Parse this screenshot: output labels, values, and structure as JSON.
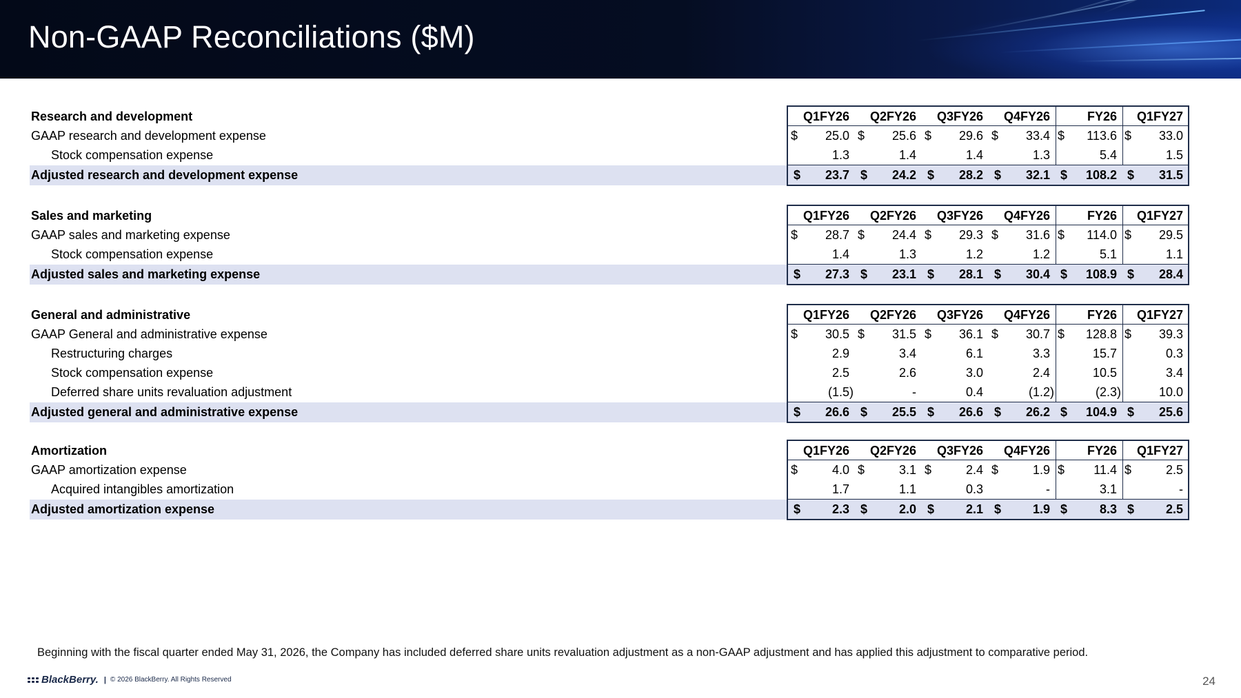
{
  "title": "Non-GAAP Reconciliations ($M)",
  "columns": [
    "Q1FY26",
    "Q2FY26",
    "Q3FY26",
    "Q4FY26",
    "FY26",
    "Q1FY27"
  ],
  "sections": [
    {
      "heading": "Research and development",
      "rows": [
        {
          "label": "GAAP research and development expense",
          "indent": false,
          "dollar": true,
          "values": [
            "25.0",
            "25.6",
            "29.6",
            "33.4",
            "113.6",
            "33.0"
          ]
        },
        {
          "label": "Stock compensation expense",
          "indent": true,
          "dollar": false,
          "values": [
            "1.3",
            "1.4",
            "1.4",
            "1.3",
            "5.4",
            "1.5"
          ]
        }
      ],
      "adjusted": {
        "label": "Adjusted research and development expense",
        "values": [
          "23.7",
          "24.2",
          "28.2",
          "32.1",
          "108.2",
          "31.5"
        ]
      }
    },
    {
      "heading": "Sales and marketing",
      "rows": [
        {
          "label": "GAAP sales and marketing expense",
          "indent": false,
          "dollar": true,
          "values": [
            "28.7",
            "24.4",
            "29.3",
            "31.6",
            "114.0",
            "29.5"
          ]
        },
        {
          "label": "Stock compensation expense",
          "indent": true,
          "dollar": false,
          "values": [
            "1.4",
            "1.3",
            "1.2",
            "1.2",
            "5.1",
            "1.1"
          ]
        }
      ],
      "adjusted": {
        "label": "Adjusted sales and marketing expense",
        "values": [
          "27.3",
          "23.1",
          "28.1",
          "30.4",
          "108.9",
          "28.4"
        ]
      }
    },
    {
      "heading": "General and administrative",
      "rows": [
        {
          "label": "GAAP General and administrative expense",
          "indent": false,
          "dollar": true,
          "values": [
            "30.5",
            "31.5",
            "36.1",
            "30.7",
            "128.8",
            "39.3"
          ]
        },
        {
          "label": "Restructuring charges",
          "indent": true,
          "dollar": false,
          "values": [
            "2.9",
            "3.4",
            "6.1",
            "3.3",
            "15.7",
            "0.3"
          ]
        },
        {
          "label": "Stock compensation expense",
          "indent": true,
          "dollar": false,
          "values": [
            "2.5",
            "2.6",
            "3.0",
            "2.4",
            "10.5",
            "3.4"
          ]
        },
        {
          "label": "Deferred share units revaluation adjustment",
          "indent": true,
          "dollar": false,
          "values": [
            "(1.5)",
            "-",
            "0.4",
            "(1.2)",
            "(2.3)",
            "10.0"
          ]
        }
      ],
      "adjusted": {
        "label": "Adjusted general and administrative expense",
        "values": [
          "26.6",
          "25.5",
          "26.6",
          "26.2",
          "104.9",
          "25.6"
        ]
      }
    },
    {
      "heading": "Amortization",
      "rows": [
        {
          "label": "GAAP amortization expense",
          "indent": false,
          "dollar": true,
          "values": [
            "4.0",
            "3.1",
            "2.4",
            "1.9",
            "11.4",
            "2.5"
          ]
        },
        {
          "label": "Acquired intangibles amortization",
          "indent": true,
          "dollar": false,
          "values": [
            "1.7",
            "1.1",
            "0.3",
            "-",
            "3.1",
            "-"
          ]
        }
      ],
      "adjusted": {
        "label": "Adjusted amortization expense",
        "values": [
          "2.3",
          "2.0",
          "2.1",
          "1.9",
          "8.3",
          "2.5"
        ]
      }
    }
  ],
  "currency_symbol": "$",
  "footnote": "Beginning with the fiscal quarter ended May 31, 2026, the Company has included deferred share units revaluation adjustment as a non-GAAP adjustment and has applied this adjustment to comparative period.",
  "footer": {
    "brand": "BlackBerry.",
    "separator": "|",
    "copyright": "© 2026 BlackBerry. All Rights Reserved",
    "page_number": "24"
  },
  "colors": {
    "header_bg": "#030918",
    "adjusted_row_bg": "#dde1f1",
    "table_border": "#1f2d4a"
  }
}
